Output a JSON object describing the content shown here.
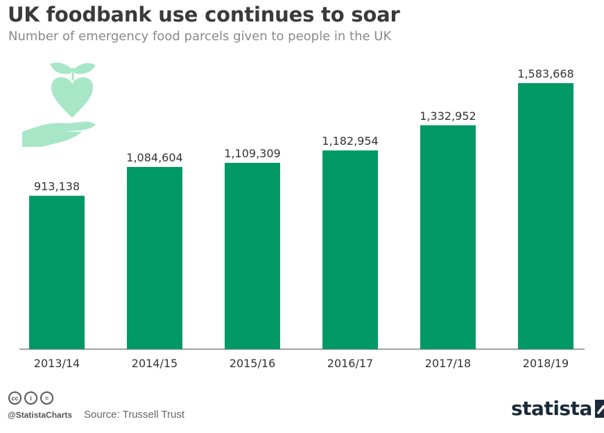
{
  "header": {
    "title": "UK foodbank use continues to soar",
    "subtitle": "Number of emergency food parcels given to people in the UK"
  },
  "chart_data": {
    "type": "bar",
    "title": "UK foodbank use continues to soar",
    "subtitle": "Number of emergency food parcels given to people in the UK",
    "categories": [
      "2013/14",
      "2014/15",
      "2015/16",
      "2016/17",
      "2017/18",
      "2018/19"
    ],
    "values": [
      913138,
      1084604,
      1109309,
      1182954,
      1332952,
      1583668
    ],
    "value_labels": [
      "913,138",
      "1,084,604",
      "1,109,309",
      "1,182,954",
      "1,332,952",
      "1,583,668"
    ],
    "ylim": [
      0,
      1583668
    ],
    "grid": false,
    "legend": "none",
    "bar_color": "#009966"
  },
  "footer": {
    "handle": "@StatistaCharts",
    "source": "Source: Trussell Trust",
    "license_icons": [
      "cc-icon",
      "attribution-icon",
      "no-derivatives-icon"
    ],
    "license_glyphs": [
      "cc",
      "i",
      "="
    ],
    "brand": "statista"
  },
  "colors": {
    "bar": "#009966",
    "illustration": "#a8e6c8",
    "title": "#3a3a3a",
    "subtitle": "#8a8a8a"
  }
}
